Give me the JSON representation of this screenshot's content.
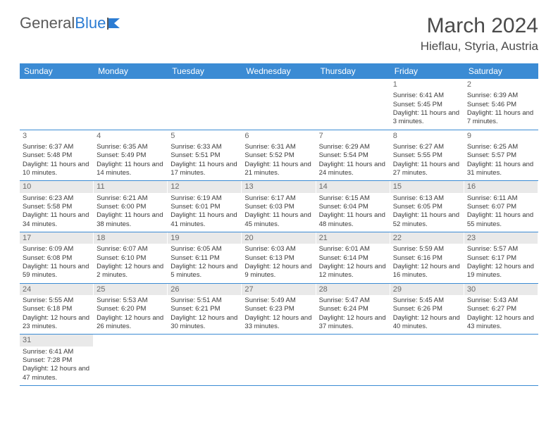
{
  "logo": {
    "text1": "General",
    "text2": "Blue"
  },
  "title": "March 2024",
  "location": "Hieflau, Styria, Austria",
  "colors": {
    "header_bg": "#3b8bd4",
    "header_text": "#ffffff",
    "daynum_bg": "#e9e9e9",
    "border": "#3b8bd4",
    "text": "#3a3a3a"
  },
  "day_headers": [
    "Sunday",
    "Monday",
    "Tuesday",
    "Wednesday",
    "Thursday",
    "Friday",
    "Saturday"
  ],
  "weeks": [
    [
      null,
      null,
      null,
      null,
      null,
      {
        "n": "1",
        "sr": "6:41 AM",
        "ss": "5:45 PM",
        "dl": "11 hours and 3 minutes."
      },
      {
        "n": "2",
        "sr": "6:39 AM",
        "ss": "5:46 PM",
        "dl": "11 hours and 7 minutes."
      }
    ],
    [
      {
        "n": "3",
        "sr": "6:37 AM",
        "ss": "5:48 PM",
        "dl": "11 hours and 10 minutes."
      },
      {
        "n": "4",
        "sr": "6:35 AM",
        "ss": "5:49 PM",
        "dl": "11 hours and 14 minutes."
      },
      {
        "n": "5",
        "sr": "6:33 AM",
        "ss": "5:51 PM",
        "dl": "11 hours and 17 minutes."
      },
      {
        "n": "6",
        "sr": "6:31 AM",
        "ss": "5:52 PM",
        "dl": "11 hours and 21 minutes."
      },
      {
        "n": "7",
        "sr": "6:29 AM",
        "ss": "5:54 PM",
        "dl": "11 hours and 24 minutes."
      },
      {
        "n": "8",
        "sr": "6:27 AM",
        "ss": "5:55 PM",
        "dl": "11 hours and 27 minutes."
      },
      {
        "n": "9",
        "sr": "6:25 AM",
        "ss": "5:57 PM",
        "dl": "11 hours and 31 minutes."
      }
    ],
    [
      {
        "n": "10",
        "sr": "6:23 AM",
        "ss": "5:58 PM",
        "dl": "11 hours and 34 minutes."
      },
      {
        "n": "11",
        "sr": "6:21 AM",
        "ss": "6:00 PM",
        "dl": "11 hours and 38 minutes."
      },
      {
        "n": "12",
        "sr": "6:19 AM",
        "ss": "6:01 PM",
        "dl": "11 hours and 41 minutes."
      },
      {
        "n": "13",
        "sr": "6:17 AM",
        "ss": "6:03 PM",
        "dl": "11 hours and 45 minutes."
      },
      {
        "n": "14",
        "sr": "6:15 AM",
        "ss": "6:04 PM",
        "dl": "11 hours and 48 minutes."
      },
      {
        "n": "15",
        "sr": "6:13 AM",
        "ss": "6:05 PM",
        "dl": "11 hours and 52 minutes."
      },
      {
        "n": "16",
        "sr": "6:11 AM",
        "ss": "6:07 PM",
        "dl": "11 hours and 55 minutes."
      }
    ],
    [
      {
        "n": "17",
        "sr": "6:09 AM",
        "ss": "6:08 PM",
        "dl": "11 hours and 59 minutes."
      },
      {
        "n": "18",
        "sr": "6:07 AM",
        "ss": "6:10 PM",
        "dl": "12 hours and 2 minutes."
      },
      {
        "n": "19",
        "sr": "6:05 AM",
        "ss": "6:11 PM",
        "dl": "12 hours and 5 minutes."
      },
      {
        "n": "20",
        "sr": "6:03 AM",
        "ss": "6:13 PM",
        "dl": "12 hours and 9 minutes."
      },
      {
        "n": "21",
        "sr": "6:01 AM",
        "ss": "6:14 PM",
        "dl": "12 hours and 12 minutes."
      },
      {
        "n": "22",
        "sr": "5:59 AM",
        "ss": "6:16 PM",
        "dl": "12 hours and 16 minutes."
      },
      {
        "n": "23",
        "sr": "5:57 AM",
        "ss": "6:17 PM",
        "dl": "12 hours and 19 minutes."
      }
    ],
    [
      {
        "n": "24",
        "sr": "5:55 AM",
        "ss": "6:18 PM",
        "dl": "12 hours and 23 minutes."
      },
      {
        "n": "25",
        "sr": "5:53 AM",
        "ss": "6:20 PM",
        "dl": "12 hours and 26 minutes."
      },
      {
        "n": "26",
        "sr": "5:51 AM",
        "ss": "6:21 PM",
        "dl": "12 hours and 30 minutes."
      },
      {
        "n": "27",
        "sr": "5:49 AM",
        "ss": "6:23 PM",
        "dl": "12 hours and 33 minutes."
      },
      {
        "n": "28",
        "sr": "5:47 AM",
        "ss": "6:24 PM",
        "dl": "12 hours and 37 minutes."
      },
      {
        "n": "29",
        "sr": "5:45 AM",
        "ss": "6:26 PM",
        "dl": "12 hours and 40 minutes."
      },
      {
        "n": "30",
        "sr": "5:43 AM",
        "ss": "6:27 PM",
        "dl": "12 hours and 43 minutes."
      }
    ],
    [
      {
        "n": "31",
        "sr": "6:41 AM",
        "ss": "7:28 PM",
        "dl": "12 hours and 47 minutes."
      },
      null,
      null,
      null,
      null,
      null,
      null
    ]
  ],
  "labels": {
    "sunrise": "Sunrise:",
    "sunset": "Sunset:",
    "daylight": "Daylight:"
  }
}
